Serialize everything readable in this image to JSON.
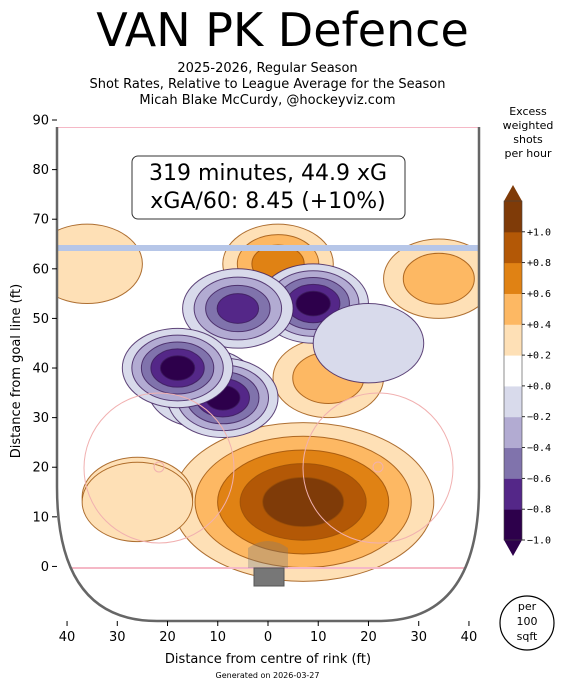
{
  "header": {
    "title": "VAN PK Defence",
    "subtitle_lines": [
      "2025-2026, Regular Season",
      "Shot Rates, Relative to League Average for the Season",
      "Micah Blake McCurdy, @hockeyviz.com"
    ]
  },
  "stats_box": {
    "line1": "319 minutes, 44.9 xG",
    "line2": "xGA/60: 8.45 (+10%)"
  },
  "colorbar": {
    "title_lines": [
      "Excess",
      "weighted",
      "shots",
      "per hour"
    ],
    "tick_labels": [
      "+1.0",
      "+0.8",
      "+0.6",
      "+0.4",
      "+0.2",
      "+0.0",
      "−0.2",
      "−0.4",
      "−0.6",
      "−0.8",
      "−1.0"
    ],
    "colors": [
      "#2d004b",
      "#542788",
      "#8073ac",
      "#b2abd2",
      "#d8daeb",
      "#ffffff",
      "#fee0b6",
      "#fdb863",
      "#e08214",
      "#b35806",
      "#7f3b08"
    ]
  },
  "per_label": [
    "per",
    "100",
    "sqft"
  ],
  "footer": "Generated on 2026-03-27",
  "chart_data": {
    "type": "heatmap",
    "xlabel": "Distance from centre of rink (ft)",
    "ylabel": "Distance from goal line (ft)",
    "xlim": [
      -42,
      42
    ],
    "ylim": [
      -11,
      90
    ],
    "x_ticks": [
      -40,
      -30,
      -20,
      -10,
      0,
      10,
      20,
      30,
      40
    ],
    "x_tick_labels": [
      "40",
      "30",
      "20",
      "10",
      "0",
      "10",
      "20",
      "30",
      "40"
    ],
    "y_ticks": [
      0,
      10,
      20,
      30,
      40,
      50,
      60,
      70,
      80,
      90
    ],
    "y_tick_labels": [
      "0",
      "10",
      "20",
      "30",
      "40",
      "50",
      "60",
      "70",
      "80",
      "90"
    ],
    "colorbar_range": [
      -1.0,
      1.0
    ],
    "regions": [
      {
        "kind": "excess",
        "x": 7,
        "y": 13,
        "value": 1.0
      },
      {
        "kind": "excess",
        "x": 12,
        "y": 38,
        "value": 0.4
      },
      {
        "kind": "excess",
        "x": 2,
        "y": 61,
        "value": 0.6
      },
      {
        "kind": "excess",
        "x": 34,
        "y": 58,
        "value": 0.4
      },
      {
        "kind": "excess",
        "x": -36,
        "y": 61,
        "value": 0.2
      },
      {
        "kind": "excess",
        "x": -26,
        "y": 14,
        "value": 0.2
      },
      {
        "kind": "excess",
        "x": -26,
        "y": 13,
        "value": 0.2
      },
      {
        "kind": "deficit",
        "x": 9,
        "y": 53,
        "value": -1.0
      },
      {
        "kind": "deficit",
        "x": 20,
        "y": 45,
        "value": -0.2
      },
      {
        "kind": "deficit",
        "x": -13,
        "y": 36,
        "value": -0.8
      },
      {
        "kind": "deficit",
        "x": -6,
        "y": 52,
        "value": -0.8
      },
      {
        "kind": "deficit",
        "x": -9,
        "y": 34,
        "value": -1.0
      },
      {
        "kind": "deficit",
        "x": -18,
        "y": 40,
        "value": -1.0
      }
    ]
  }
}
